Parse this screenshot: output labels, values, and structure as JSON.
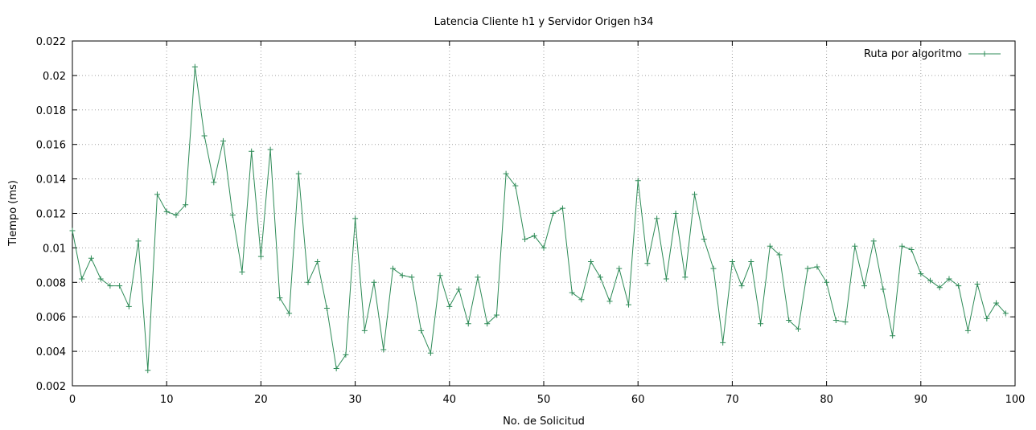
{
  "chart_data": {
    "type": "line",
    "title": "Latencia Cliente h1 y Servidor Origen h34",
    "xlabel": "No. de Solicitud",
    "ylabel": "Tiempo (ms)",
    "xlim": [
      0,
      100
    ],
    "ylim": [
      0.002,
      0.022
    ],
    "xticks": [
      0,
      10,
      20,
      30,
      40,
      50,
      60,
      70,
      80,
      90,
      100
    ],
    "xtick_labels": [
      "0",
      "10",
      "20",
      "30",
      "40",
      "50",
      "60",
      "70",
      "80",
      "90",
      "100"
    ],
    "yticks": [
      0.002,
      0.004,
      0.006,
      0.008,
      0.01,
      0.012,
      0.014,
      0.016,
      0.018,
      0.02,
      0.022
    ],
    "ytick_labels": [
      "0.002",
      "0.004",
      "0.006",
      "0.008",
      "0.01",
      "0.012",
      "0.014",
      "0.016",
      "0.018",
      "0.02",
      "0.022"
    ],
    "grid": true,
    "legend_position": "top-right",
    "series": [
      {
        "name": "Ruta por algoritmo",
        "color": "#2e8b57",
        "marker": "plus",
        "x": [
          0,
          1,
          2,
          3,
          4,
          5,
          6,
          7,
          8,
          9,
          10,
          11,
          12,
          13,
          14,
          15,
          16,
          17,
          18,
          19,
          20,
          21,
          22,
          23,
          24,
          25,
          26,
          27,
          28,
          29,
          30,
          31,
          32,
          33,
          34,
          35,
          36,
          37,
          38,
          39,
          40,
          41,
          42,
          43,
          44,
          45,
          46,
          47,
          48,
          49,
          50,
          51,
          52,
          53,
          54,
          55,
          56,
          57,
          58,
          59,
          60,
          61,
          62,
          63,
          64,
          65,
          66,
          67,
          68,
          69,
          70,
          71,
          72,
          73,
          74,
          75,
          76,
          77,
          78,
          79,
          80,
          81,
          82,
          83,
          84,
          85,
          86,
          87,
          88,
          89,
          90,
          91,
          92,
          93,
          94,
          95,
          96,
          97,
          98,
          99
        ],
        "y": [
          0.011,
          0.0082,
          0.0094,
          0.0082,
          0.0078,
          0.0078,
          0.0066,
          0.0104,
          0.0029,
          0.0131,
          0.0121,
          0.0119,
          0.0125,
          0.0205,
          0.0165,
          0.0138,
          0.0162,
          0.0119,
          0.0086,
          0.0156,
          0.0095,
          0.0157,
          0.0071,
          0.0062,
          0.0143,
          0.008,
          0.0092,
          0.0065,
          0.003,
          0.0038,
          0.0117,
          0.0052,
          0.008,
          0.0041,
          0.0088,
          0.0084,
          0.0083,
          0.0052,
          0.0039,
          0.0084,
          0.0066,
          0.0076,
          0.0056,
          0.0083,
          0.0056,
          0.0061,
          0.0143,
          0.0136,
          0.0105,
          0.0107,
          0.01,
          0.012,
          0.0123,
          0.0074,
          0.007,
          0.0092,
          0.0083,
          0.0069,
          0.0088,
          0.0067,
          0.0139,
          0.0091,
          0.0117,
          0.0082,
          0.012,
          0.0083,
          0.0131,
          0.0105,
          0.0088,
          0.0045,
          0.0092,
          0.0078,
          0.0092,
          0.0056,
          0.0101,
          0.0096,
          0.0058,
          0.0053,
          0.0088,
          0.0089,
          0.008,
          0.0058,
          0.0057,
          0.0101,
          0.0078,
          0.0104,
          0.0076,
          0.0049,
          0.0101,
          0.0099,
          0.0085,
          0.0081,
          0.0077,
          0.0082,
          0.0078,
          0.0052,
          0.0079,
          0.0059,
          0.0068,
          0.0062
        ]
      }
    ]
  }
}
